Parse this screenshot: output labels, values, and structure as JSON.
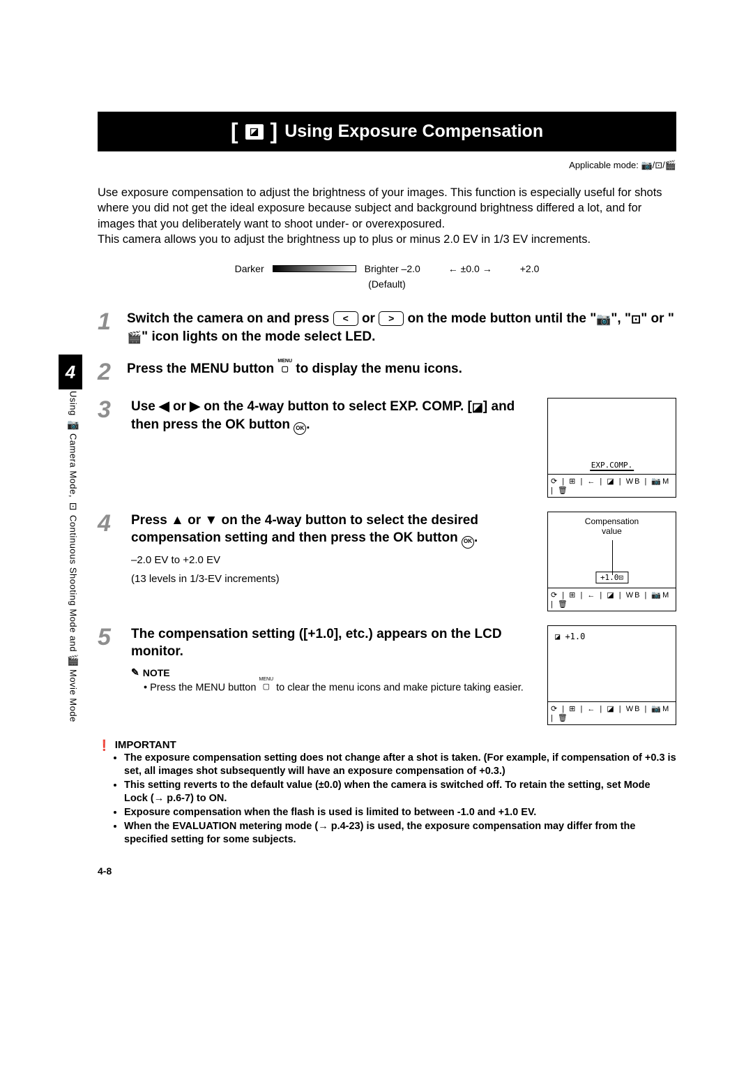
{
  "chapter_num": "4",
  "side_label": {
    "part1": "Using",
    "part2": " Camera Mode,",
    "part3": " Continuous Shooting Mode and",
    "part4": " Movie Mode"
  },
  "title": {
    "icon": "⧉",
    "text": "Using Exposure Compensation"
  },
  "applicable_mode": "Applicable mode: 📷/⊡/🎬",
  "intro": {
    "p1": "Use exposure compensation to adjust the brightness of your images. This function is especially useful for shots where you did not get the ideal exposure because subject and background brightness differed a lot, and for images that you deliberately want to shoot under- or overexposured.",
    "p2": "This camera allows you to adjust the brightness up to plus or minus 2.0 EV in 1/3 EV increments."
  },
  "scale": {
    "darker": "Darker",
    "brighter": "Brighter",
    "min": "–2.0",
    "center": "←   ±0.0   →",
    "max": "+2.0",
    "default_label": "(Default)"
  },
  "steps": {
    "s1": {
      "num": "1",
      "part1": "Switch the camera on and press ",
      "key1": "<",
      "mid": " or ",
      "key2": ">",
      "part2": " on the mode button until the \"",
      "part3": "\", \"",
      "part4": "\" or \"",
      "part5": "\" icon lights on the mode select LED."
    },
    "s2": {
      "num": "2",
      "part1": "Press the MENU button ",
      "part2": " to display the menu icons."
    },
    "s3": {
      "num": "3",
      "part1": "Use ◀ or ▶ on the 4-way button to select EXP. COMP. [",
      "part2": "] and then press the OK button ",
      "part3": ".",
      "lcd_label": "EXP.COMP.",
      "lcd_icons": "⟳ | ⊞ | ← | ◪ | WB | 📷M | 🗑"
    },
    "s4": {
      "num": "4",
      "heading": "Press ▲ or ▼ on the 4-way button to select the desired compensation setting and then press the OK button ",
      "heading_end": ".",
      "sub1": "–2.0 EV to +2.0 EV",
      "sub2": "(13 levels in 1/3-EV increments)",
      "lcd_top1": "Compensation",
      "lcd_top2": "value",
      "lcd_value": "+1.0⊡",
      "lcd_icons": "⟳ | ⊞ | ← | ◪ | WB | 📷M | 🗑"
    },
    "s5": {
      "num": "5",
      "heading": "The compensation setting ([+1.0], etc.) appears on the LCD monitor.",
      "lcd_corner": "◪ +1.0",
      "lcd_icons": "⟳ | ⊞ | ← | ◪ | WB | 📷M | 🗑"
    }
  },
  "note": {
    "label": "NOTE",
    "text_a": "Press the MENU button ",
    "text_b": " to clear the menu icons and make picture taking easier."
  },
  "important": {
    "label": "IMPORTANT",
    "items": [
      "The exposure compensation setting does not change after a shot is taken. (For example, if compensation of +0.3 is set, all images shot subsequently will have an exposure compensation of +0.3.)",
      "This setting reverts to the default value (±0.0) when the camera is switched off. To retain the setting, set Mode Lock (→ p.6-7) to ON.",
      "Exposure compensation when the flash is used is limited to between -1.0 and +1.0 EV.",
      "When the EVALUATION metering mode (→ p.4-23) is used, the exposure compensation may differ from the specified setting for some subjects."
    ]
  },
  "page_num": "4-8"
}
